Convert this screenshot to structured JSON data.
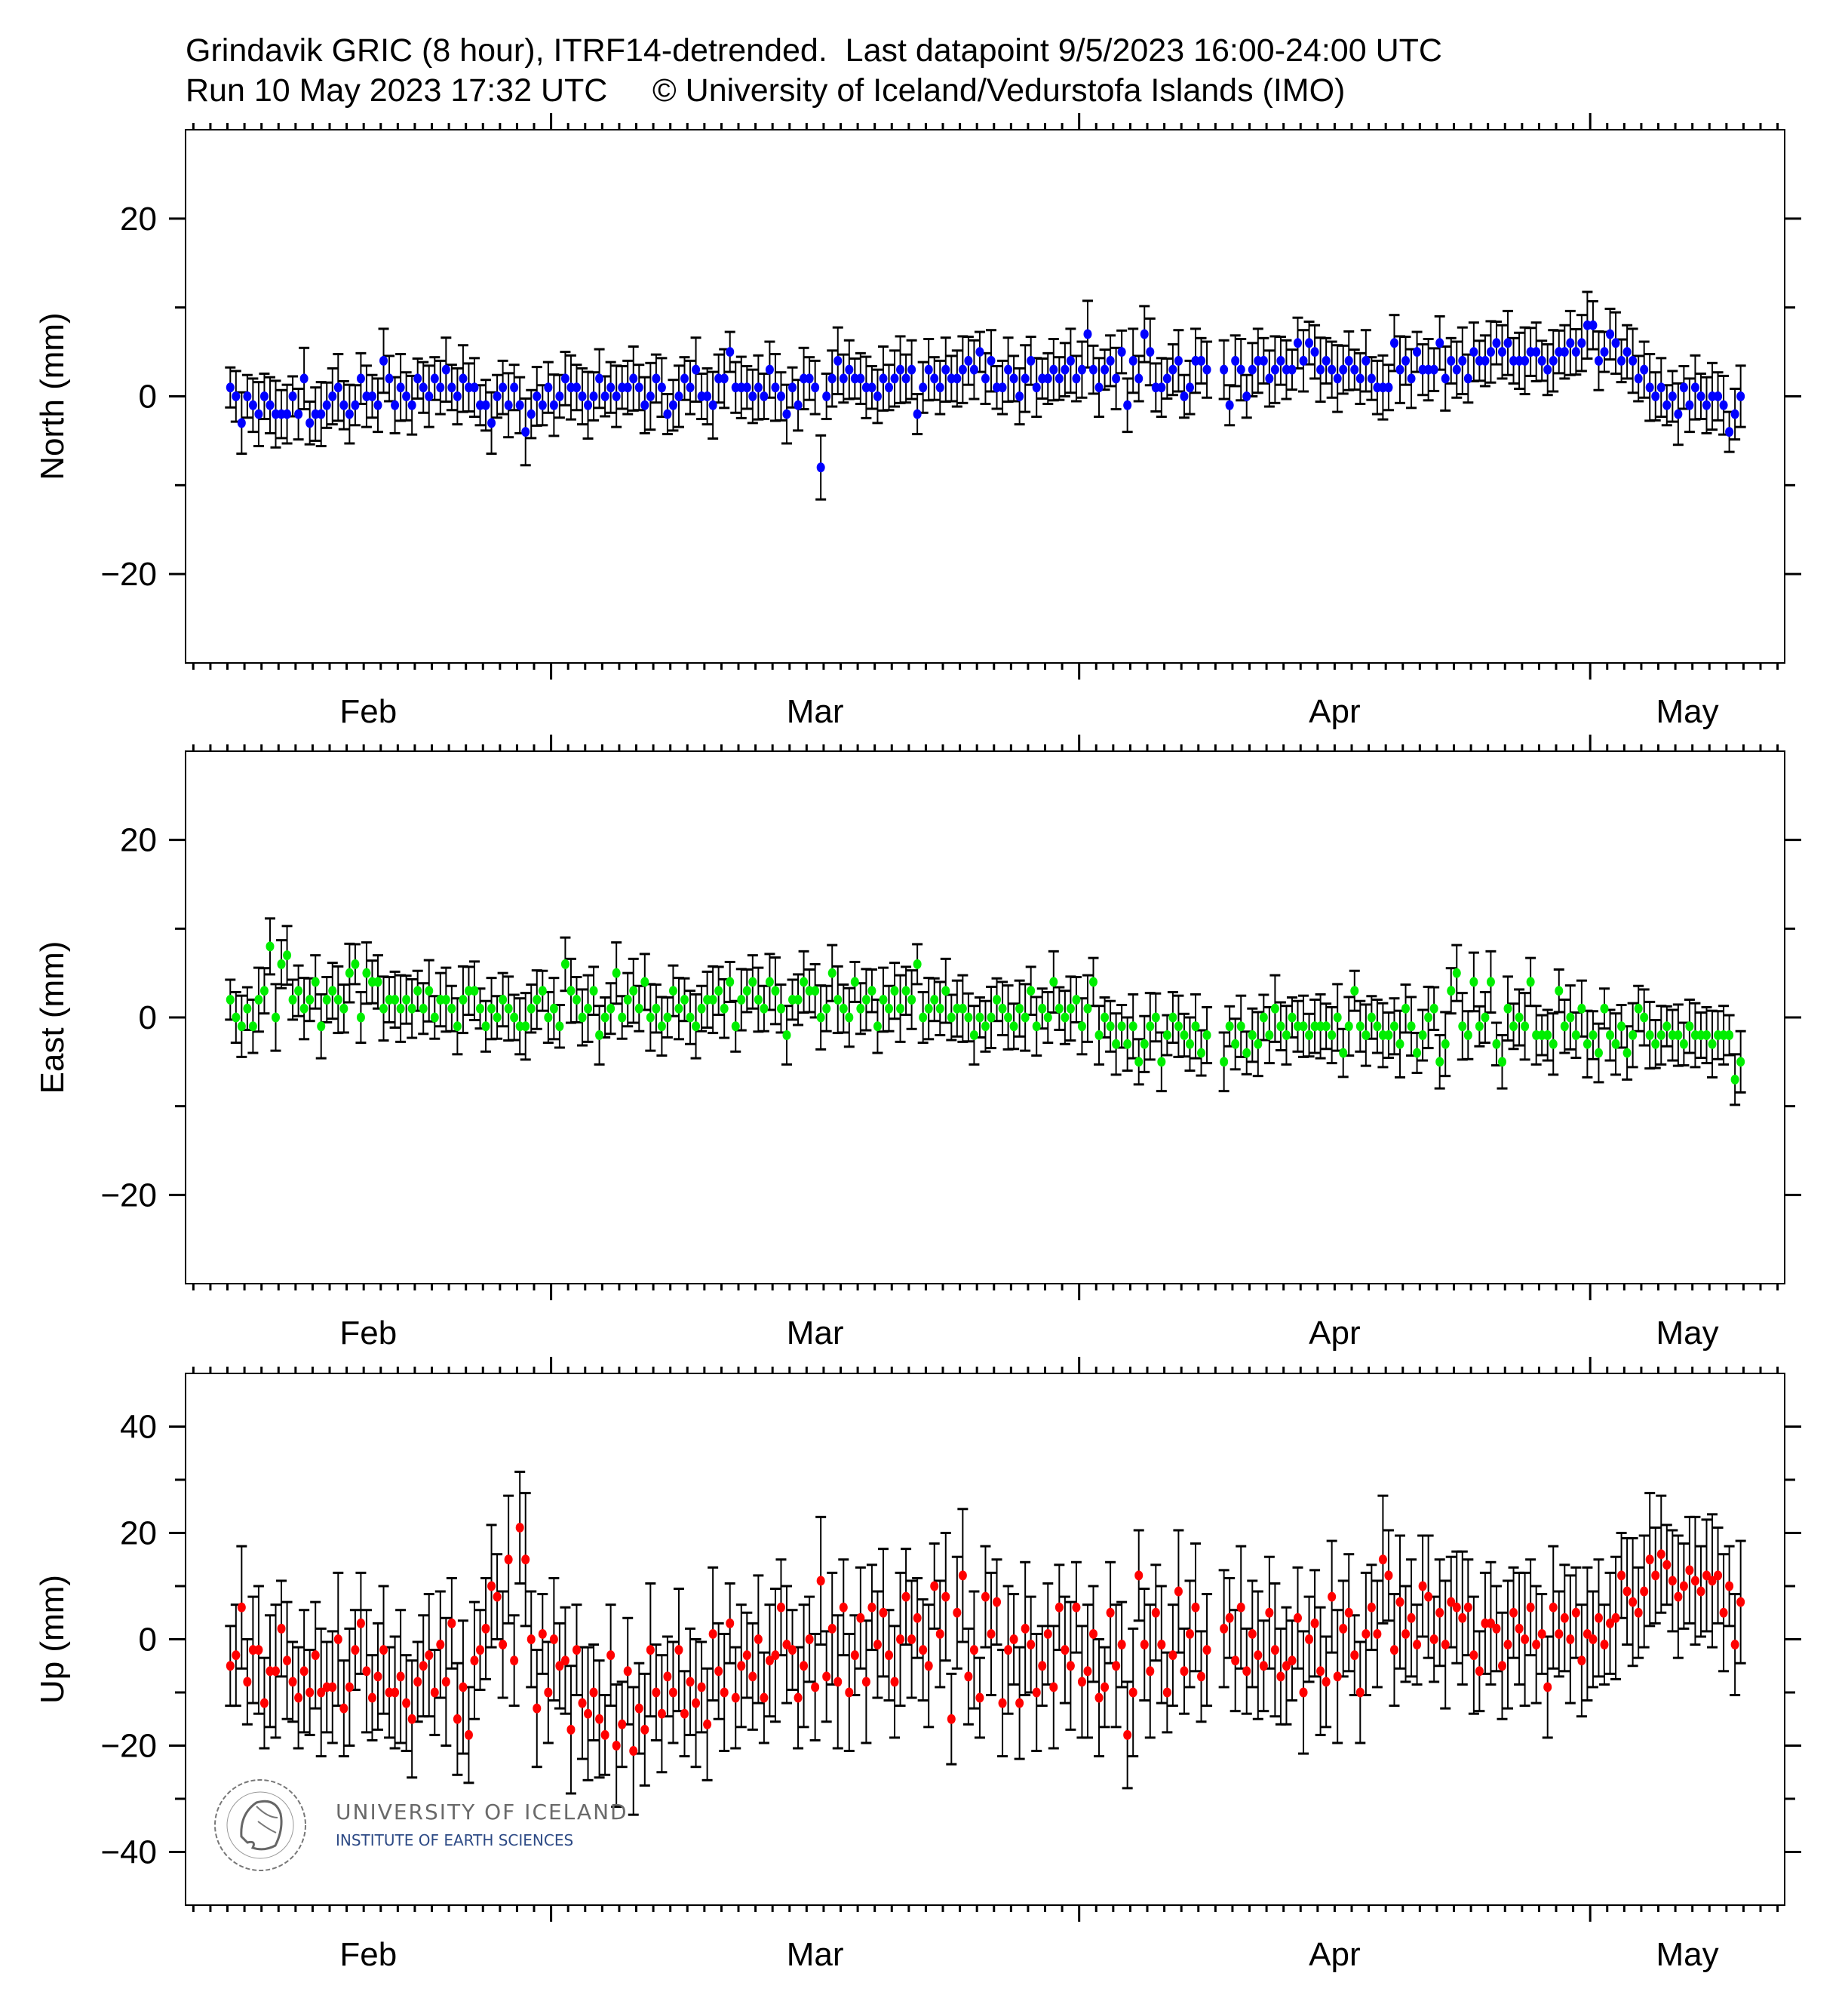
{
  "header": {
    "line1": "Grindavik GRIC (8 hour), ITRF14-detrended.  Last datapoint 9/5/2023 16:00-24:00 UTC",
    "line2": "Run 10 May 2023 17:32 UTC     © University of Iceland/Vedurstofa Islands (IMO)"
  },
  "logo": {
    "name": "UNIVERSITY OF ICELAND",
    "institute": "INSTITUTE OF EARTH SCIENCES",
    "seal_text": "SIGILLUM UNIVERSITATIS ISLANDIAE"
  },
  "colors": {
    "north": "#0000ff",
    "east": "#00ee00",
    "up": "#ff0000",
    "errorbar": "#000000"
  },
  "chart_data": [
    {
      "type": "scatter",
      "ylabel": "North (mm)",
      "ylim": [
        -30,
        30
      ],
      "yticks": [
        20,
        0,
        -20
      ],
      "ytick_labels": [
        "20",
        "0",
        "−20"
      ],
      "yminor": 10,
      "xlim": [
        "2023-02-07T13:00:00Z",
        "2023-05-12T10:00:00Z"
      ],
      "month_labels": [
        "Feb",
        "Mar",
        "Apr",
        "May"
      ],
      "x_start": "2023-02-10T04:00:00Z",
      "step_hours": 8,
      "error_mm": 3,
      "color_key": "north",
      "values": [
        1,
        0,
        -3,
        0,
        -1,
        -2,
        0,
        -1,
        -2,
        -2,
        -2,
        0,
        -2,
        2,
        -3,
        -2,
        -2,
        -1,
        0,
        1,
        -1,
        -2,
        -1,
        2,
        0,
        0,
        -1,
        4,
        2,
        -1,
        1,
        0,
        -1,
        2,
        1,
        0,
        2,
        1,
        3,
        1,
        0,
        2,
        1,
        1,
        -1,
        -1,
        -3,
        0,
        1,
        -1,
        1,
        -1,
        -4,
        -2,
        0,
        -1,
        1,
        -1,
        0,
        2,
        1,
        1,
        0,
        -1,
        0,
        2,
        0,
        1,
        0,
        1,
        1,
        2,
        1,
        -1,
        0,
        2,
        1,
        -2,
        -1,
        0,
        2,
        1,
        3,
        0,
        0,
        -1,
        2,
        2,
        5,
        1,
        1,
        1,
        0,
        1,
        0,
        3,
        1,
        0,
        -2,
        1,
        -1,
        2,
        2,
        1,
        -8,
        0,
        2,
        4,
        2,
        3,
        2,
        2,
        1,
        1,
        0,
        2,
        1,
        2,
        3,
        2,
        3,
        -2,
        1,
        3,
        2,
        1,
        3,
        2,
        2,
        3,
        4,
        3,
        5,
        2,
        4,
        1,
        1,
        3,
        2,
        0,
        2,
        4,
        1,
        2,
        2,
        3,
        2,
        3,
        4,
        2,
        3,
        7,
        3,
        1,
        3,
        4,
        2,
        5,
        -1,
        4,
        2,
        7,
        5,
        1,
        1,
        2,
        3,
        4,
        0,
        1,
        4,
        4,
        3,
        null,
        null,
        3,
        -1,
        4,
        3,
        0,
        3,
        4,
        4,
        2,
        3,
        4,
        3,
        3,
        6,
        4,
        6,
        5,
        3,
        4,
        3,
        2,
        3,
        4,
        3,
        2,
        4,
        2,
        1,
        1,
        1,
        6,
        3,
        4,
        2,
        5,
        3,
        3,
        3,
        6,
        2,
        4,
        3,
        4,
        2,
        5,
        4,
        4,
        5,
        6,
        5,
        6,
        4,
        4,
        4,
        5,
        5,
        4,
        3,
        4,
        5,
        5,
        6,
        5,
        6,
        8,
        8,
        4,
        5,
        7,
        6,
        4,
        5,
        4,
        2,
        3,
        1,
        0,
        1,
        -1,
        0,
        -2,
        1,
        -1,
        1,
        0,
        -1,
        0,
        0,
        -1,
        -4,
        -2,
        0
      ]
    },
    {
      "type": "scatter",
      "ylabel": "East (mm)",
      "ylim": [
        -30,
        30
      ],
      "yticks": [
        20,
        0,
        -20
      ],
      "ytick_labels": [
        "20",
        "0",
        "−20"
      ],
      "yminor": 10,
      "xlim": [
        "2023-02-07T13:00:00Z",
        "2023-05-12T10:00:00Z"
      ],
      "month_labels": [
        "Feb",
        "Mar",
        "Apr",
        "May"
      ],
      "x_start": "2023-02-10T04:00:00Z",
      "step_hours": 8,
      "error_mm": 3,
      "color_key": "east",
      "values": [
        2,
        0,
        -1,
        1,
        -1,
        2,
        3,
        8,
        0,
        6,
        7,
        2,
        3,
        1,
        2,
        4,
        -1,
        2,
        3,
        2,
        1,
        5,
        6,
        0,
        5,
        4,
        4,
        1,
        2,
        2,
        1,
        2,
        1,
        3,
        1,
        3,
        0,
        2,
        2,
        1,
        -1,
        2,
        3,
        3,
        1,
        -1,
        1,
        0,
        2,
        1,
        0,
        -1,
        -1,
        1,
        2,
        3,
        0,
        1,
        -1,
        6,
        3,
        2,
        0,
        1,
        3,
        -2,
        0,
        1,
        5,
        0,
        2,
        3,
        1,
        4,
        0,
        1,
        -1,
        0,
        3,
        1,
        2,
        0,
        -1,
        1,
        2,
        2,
        3,
        1,
        4,
        -1,
        2,
        3,
        4,
        2,
        1,
        4,
        3,
        1,
        -2,
        2,
        2,
        4,
        3,
        3,
        0,
        1,
        5,
        2,
        1,
        0,
        4,
        1,
        2,
        3,
        -1,
        2,
        1,
        3,
        1,
        3,
        2,
        6,
        0,
        1,
        2,
        1,
        3,
        0,
        1,
        1,
        0,
        -2,
        0,
        -1,
        0,
        2,
        1,
        0,
        -1,
        1,
        0,
        3,
        -1,
        1,
        0,
        4,
        1,
        0,
        1,
        2,
        -1,
        1,
        4,
        -2,
        0,
        -1,
        -3,
        -1,
        -3,
        -1,
        -5,
        -3,
        -1,
        0,
        -5,
        -2,
        0,
        -1,
        -2,
        -3,
        -1,
        -4,
        -2,
        null,
        null,
        -5,
        -1,
        -3,
        -1,
        -4,
        -2,
        -3,
        0,
        -2,
        1,
        -1,
        -2,
        0,
        -1,
        -1,
        -2,
        -1,
        -1,
        -1,
        -2,
        0,
        -4,
        -1,
        3,
        -1,
        -2,
        0,
        -1,
        -2,
        -2,
        -1,
        -3,
        1,
        -1,
        -4,
        -2,
        0,
        1,
        -5,
        -3,
        3,
        5,
        -1,
        -2,
        4,
        -1,
        0,
        4,
        -3,
        -5,
        1,
        -1,
        0,
        -1,
        4,
        -2,
        -2,
        -2,
        -3,
        3,
        -1,
        0,
        -2,
        1,
        -3,
        -2,
        -4,
        1,
        -2,
        -3,
        -1,
        -4,
        -2,
        1,
        0,
        -2,
        -3,
        -2,
        -1,
        -2,
        -2,
        -3,
        -1,
        -2,
        -2,
        -2,
        -3,
        -2,
        -2,
        -2,
        -7,
        -5
      ]
    },
    {
      "type": "scatter",
      "ylabel": "Up (mm)",
      "ylim": [
        -50,
        50
      ],
      "yticks": [
        40,
        20,
        0,
        -20,
        -40
      ],
      "ytick_labels": [
        "40",
        "20",
        "0",
        "−20",
        "−40"
      ],
      "yminor": 10,
      "xlim": [
        "2023-02-07T13:00:00Z",
        "2023-05-12T10:00:00Z"
      ],
      "month_labels": [
        "Feb",
        "Mar",
        "Apr",
        "May"
      ],
      "x_start": "2023-02-10T04:00:00Z",
      "step_hours": 8,
      "error_mm": 10,
      "color_key": "up",
      "values": [
        -5,
        -3,
        6,
        -8,
        -2,
        -2,
        -12,
        -6,
        -6,
        2,
        -4,
        -8,
        -11,
        -6,
        -10,
        -3,
        -10,
        -9,
        -9,
        0,
        -13,
        -9,
        -2,
        3,
        -6,
        -11,
        -7,
        -2,
        -10,
        -10,
        -7,
        -12,
        -15,
        -8,
        -5,
        -3,
        -10,
        -1,
        -8,
        3,
        -15,
        -9,
        -18,
        -4,
        -2,
        2,
        10,
        8,
        -1,
        15,
        -4,
        21,
        15,
        0,
        -13,
        1,
        -10,
        0,
        -5,
        -4,
        -17,
        -2,
        -12,
        -14,
        -10,
        -15,
        -18,
        -3,
        -20,
        -16,
        -6,
        -21,
        -13,
        -17,
        -2,
        -10,
        -14,
        -7,
        -10,
        -2,
        -14,
        -8,
        -12,
        -9,
        -16,
        1,
        -6,
        -10,
        3,
        -11,
        -5,
        -3,
        -7,
        0,
        -11,
        -4,
        -3,
        6,
        -1,
        -2,
        -11,
        -5,
        0,
        -9,
        11,
        -7,
        2,
        -8,
        6,
        -10,
        -3,
        4,
        -8,
        6,
        -1,
        5,
        -3,
        -8,
        0,
        8,
        0,
        4,
        -2,
        -5,
        10,
        1,
        8,
        -15,
        5,
        12,
        -7,
        -2,
        -11,
        8,
        1,
        7,
        -12,
        -2,
        0,
        -12,
        2,
        -1,
        -10,
        -5,
        1,
        -9,
        6,
        -2,
        -5,
        6,
        -8,
        -6,
        1,
        -11,
        -9,
        5,
        -5,
        -1,
        -18,
        -10,
        12,
        -1,
        -6,
        5,
        -1,
        -10,
        -3,
        9,
        -6,
        1,
        6,
        -7,
        -2,
        null,
        null,
        2,
        4,
        -4,
        6,
        -6,
        1,
        -3,
        -5,
        5,
        -2,
        -7,
        -5,
        -4,
        4,
        -10,
        0,
        3,
        -6,
        -8,
        8,
        -7,
        2,
        5,
        -3,
        -10,
        1,
        6,
        1,
        15,
        12,
        -2,
        7,
        1,
        4,
        -1,
        10,
        8,
        0,
        5,
        -1,
        7,
        6,
        4,
        6,
        -3,
        -6,
        3,
        3,
        2,
        -5,
        -1,
        5,
        2,
        0,
        6,
        -1,
        1,
        -9,
        6,
        1,
        4,
        0,
        5,
        -4,
        1,
        0,
        4,
        -1,
        3,
        4,
        12,
        9,
        7,
        5,
        9,
        15,
        12,
        16,
        14,
        11,
        8,
        10,
        13,
        11,
        9,
        12,
        11,
        12,
        5,
        10,
        -1,
        7
      ]
    }
  ]
}
